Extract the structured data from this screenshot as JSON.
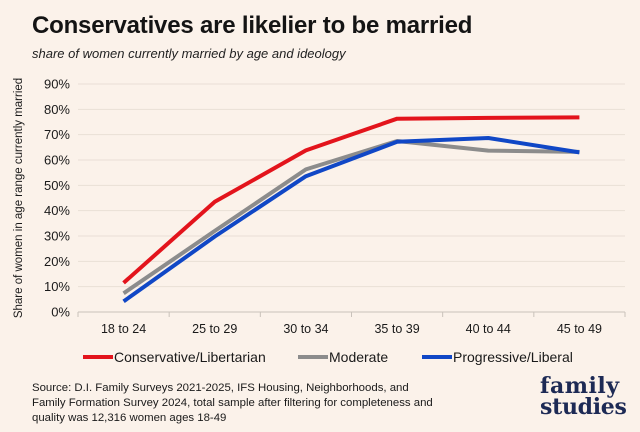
{
  "header": {
    "title": "Conservatives are likelier to be married",
    "subtitle": "share of women currently married by age and ideology"
  },
  "chart_data": {
    "type": "line",
    "ylabel": "Share of women in age range currently married",
    "ylim": [
      0,
      90
    ],
    "yticks": [
      "0%",
      "10%",
      "20%",
      "30%",
      "40%",
      "50%",
      "60%",
      "70%",
      "80%",
      "90%"
    ],
    "categories": [
      "18 to 24",
      "25 to 29",
      "30 to 34",
      "35 to 39",
      "40 to 44",
      "45 to 49"
    ],
    "grid": true,
    "legend_position": "bottom",
    "series": [
      {
        "name": "Conservative/Libertarian",
        "color": "#e3141c",
        "values": [
          11.5,
          43.5,
          63.8,
          76.3,
          76.6,
          76.8
        ]
      },
      {
        "name": "Moderate",
        "color": "#8c8c8c",
        "values": [
          7.4,
          32.0,
          56.3,
          67.5,
          63.7,
          63.2
        ]
      },
      {
        "name": "Progressive/Liberal",
        "color": "#1047c6",
        "values": [
          4.2,
          29.8,
          53.6,
          67.2,
          68.7,
          63.0
        ]
      }
    ]
  },
  "footer": {
    "source": "Source: D.I. Family Surveys 2021-2025, IFS Housing, Neighborhoods, and Family Formation Survey 2024, total sample after filtering for completeness and quality was 12,316 women ages 18-49",
    "logo_line1": "family",
    "logo_line2": "studies"
  }
}
